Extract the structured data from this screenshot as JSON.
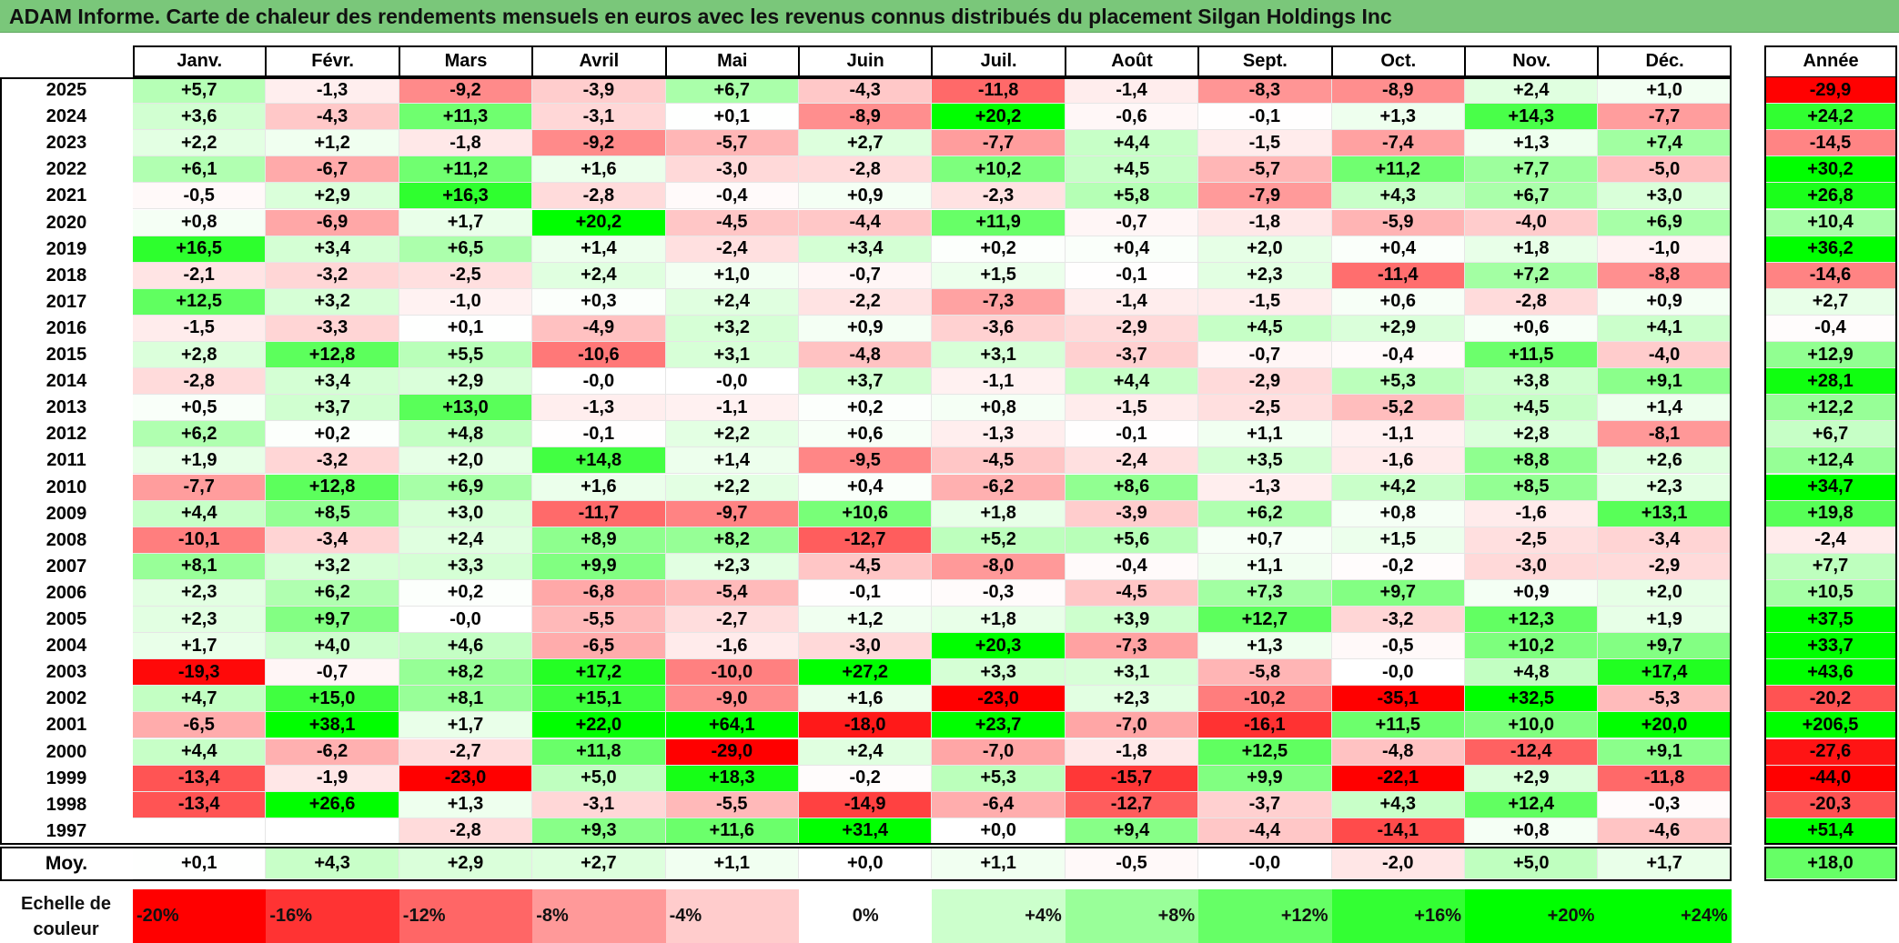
{
  "title": "ADAM Informe. Carte de chaleur des rendements mensuels en euros avec les revenus connus distribués du placement Silgan Holdings Inc",
  "colors": {
    "title_bar": "#7ac77a",
    "negative_strong": "#ff0000",
    "positive_strong": "#00ff00",
    "neutral": "#ffffff"
  },
  "chart_data": {
    "type": "heatmap",
    "title": "ADAM Informe. Carte de chaleur des rendements mensuels en euros avec les revenus connus distribués du placement Silgan Holdings Inc",
    "columns": [
      "Janv.",
      "Févr.",
      "Mars",
      "Avril",
      "Mai",
      "Juin",
      "Juil.",
      "Août",
      "Sept.",
      "Oct.",
      "Nov.",
      "Déc."
    ],
    "year_column": "Année",
    "rows": [
      {
        "year": "2025",
        "values": [
          "+5,7",
          "-1,3",
          "-9,2",
          "-3,9",
          "+6,7",
          "-4,3",
          "-11,8",
          "-1,4",
          "-8,3",
          "-8,9",
          "+2,4",
          "+1,0"
        ],
        "annual": "-29,9"
      },
      {
        "year": "2024",
        "values": [
          "+3,6",
          "-4,3",
          "+11,3",
          "-3,1",
          "+0,1",
          "-8,9",
          "+20,2",
          "-0,6",
          "-0,1",
          "+1,3",
          "+14,3",
          "-7,7"
        ],
        "annual": "+24,2"
      },
      {
        "year": "2023",
        "values": [
          "+2,2",
          "+1,2",
          "-1,8",
          "-9,2",
          "-5,7",
          "+2,7",
          "-7,7",
          "+4,4",
          "-1,5",
          "-7,4",
          "+1,3",
          "+7,4"
        ],
        "annual": "-14,5"
      },
      {
        "year": "2022",
        "values": [
          "+6,1",
          "-6,7",
          "+11,2",
          "+1,6",
          "-3,0",
          "-2,8",
          "+10,2",
          "+4,5",
          "-5,7",
          "+11,2",
          "+7,7",
          "-5,0"
        ],
        "annual": "+30,2"
      },
      {
        "year": "2021",
        "values": [
          "-0,5",
          "+2,9",
          "+16,3",
          "-2,8",
          "-0,4",
          "+0,9",
          "-2,3",
          "+5,8",
          "-7,9",
          "+4,3",
          "+6,7",
          "+3,0"
        ],
        "annual": "+26,8"
      },
      {
        "year": "2020",
        "values": [
          "+0,8",
          "-6,9",
          "+1,7",
          "+20,2",
          "-4,5",
          "-4,4",
          "+11,9",
          "-0,7",
          "-1,8",
          "-5,9",
          "-4,0",
          "+6,9"
        ],
        "annual": "+10,4"
      },
      {
        "year": "2019",
        "values": [
          "+16,5",
          "+3,4",
          "+6,5",
          "+1,4",
          "-2,4",
          "+3,4",
          "+0,2",
          "+0,4",
          "+2,0",
          "+0,4",
          "+1,8",
          "-1,0"
        ],
        "annual": "+36,2"
      },
      {
        "year": "2018",
        "values": [
          "-2,1",
          "-3,2",
          "-2,5",
          "+2,4",
          "+1,0",
          "-0,7",
          "+1,5",
          "-0,1",
          "+2,3",
          "-11,4",
          "+7,2",
          "-8,8"
        ],
        "annual": "-14,6"
      },
      {
        "year": "2017",
        "values": [
          "+12,5",
          "+3,2",
          "-1,0",
          "+0,3",
          "+2,4",
          "-2,2",
          "-7,3",
          "-1,4",
          "-1,5",
          "+0,6",
          "-2,8",
          "+0,9"
        ],
        "annual": "+2,7"
      },
      {
        "year": "2016",
        "values": [
          "-1,5",
          "-3,3",
          "+0,1",
          "-4,9",
          "+3,2",
          "+0,9",
          "-3,6",
          "-2,9",
          "+4,5",
          "+2,9",
          "+0,6",
          "+4,1"
        ],
        "annual": "-0,4"
      },
      {
        "year": "2015",
        "values": [
          "+2,8",
          "+12,8",
          "+5,5",
          "-10,6",
          "+3,1",
          "-4,8",
          "+3,1",
          "-3,7",
          "-0,7",
          "-0,4",
          "+11,5",
          "-4,0"
        ],
        "annual": "+12,9"
      },
      {
        "year": "2014",
        "values": [
          "-2,8",
          "+3,4",
          "+2,9",
          "-0,0",
          "-0,0",
          "+3,7",
          "-1,1",
          "+4,4",
          "-2,9",
          "+5,3",
          "+3,8",
          "+9,1"
        ],
        "annual": "+28,1"
      },
      {
        "year": "2013",
        "values": [
          "+0,5",
          "+3,7",
          "+13,0",
          "-1,3",
          "-1,1",
          "+0,2",
          "+0,8",
          "-1,5",
          "-2,5",
          "-5,2",
          "+4,5",
          "+1,4"
        ],
        "annual": "+12,2"
      },
      {
        "year": "2012",
        "values": [
          "+6,2",
          "+0,2",
          "+4,8",
          "-0,1",
          "+2,2",
          "+0,6",
          "-1,3",
          "-0,1",
          "+1,1",
          "-1,1",
          "+2,8",
          "-8,1"
        ],
        "annual": "+6,7"
      },
      {
        "year": "2011",
        "values": [
          "+1,9",
          "-3,2",
          "+2,0",
          "+14,8",
          "+1,4",
          "-9,5",
          "-4,5",
          "-2,4",
          "+3,5",
          "-1,6",
          "+8,8",
          "+2,6"
        ],
        "annual": "+12,4"
      },
      {
        "year": "2010",
        "values": [
          "-7,7",
          "+12,8",
          "+6,9",
          "+1,6",
          "+2,2",
          "+0,4",
          "-6,2",
          "+8,6",
          "-1,3",
          "+4,2",
          "+8,5",
          "+2,3"
        ],
        "annual": "+34,7"
      },
      {
        "year": "2009",
        "values": [
          "+4,4",
          "+8,5",
          "+3,0",
          "-11,7",
          "-9,7",
          "+10,6",
          "+1,8",
          "-3,9",
          "+6,2",
          "+0,8",
          "-1,6",
          "+13,1"
        ],
        "annual": "+19,8"
      },
      {
        "year": "2008",
        "values": [
          "-10,1",
          "-3,4",
          "+2,4",
          "+8,9",
          "+8,2",
          "-12,7",
          "+5,2",
          "+5,6",
          "+0,7",
          "+1,5",
          "-2,5",
          "-3,4"
        ],
        "annual": "-2,4"
      },
      {
        "year": "2007",
        "values": [
          "+8,1",
          "+3,2",
          "+3,3",
          "+9,9",
          "+2,3",
          "-4,5",
          "-8,0",
          "-0,4",
          "+1,1",
          "-0,2",
          "-3,0",
          "-2,9"
        ],
        "annual": "+7,7"
      },
      {
        "year": "2006",
        "values": [
          "+2,3",
          "+6,2",
          "+0,2",
          "-6,8",
          "-5,4",
          "-0,1",
          "-0,3",
          "-4,5",
          "+7,3",
          "+9,7",
          "+0,9",
          "+2,0"
        ],
        "annual": "+10,5"
      },
      {
        "year": "2005",
        "values": [
          "+2,3",
          "+9,7",
          "-0,0",
          "-5,5",
          "-2,7",
          "+1,2",
          "+1,8",
          "+3,9",
          "+12,7",
          "-3,2",
          "+12,3",
          "+1,9"
        ],
        "annual": "+37,5"
      },
      {
        "year": "2004",
        "values": [
          "+1,7",
          "+4,0",
          "+4,6",
          "-6,5",
          "-1,6",
          "-3,0",
          "+20,3",
          "-7,3",
          "+1,3",
          "-0,5",
          "+10,2",
          "+9,7"
        ],
        "annual": "+33,7"
      },
      {
        "year": "2003",
        "values": [
          "-19,3",
          "-0,7",
          "+8,2",
          "+17,2",
          "-10,0",
          "+27,2",
          "+3,3",
          "+3,1",
          "-5,8",
          "-0,0",
          "+4,8",
          "+17,4"
        ],
        "annual": "+43,6"
      },
      {
        "year": "2002",
        "values": [
          "+4,7",
          "+15,0",
          "+8,1",
          "+15,1",
          "-9,0",
          "+1,6",
          "-23,0",
          "+2,3",
          "-10,2",
          "-35,1",
          "+32,5",
          "-5,3"
        ],
        "annual": "-20,2"
      },
      {
        "year": "2001",
        "values": [
          "-6,5",
          "+38,1",
          "+1,7",
          "+22,0",
          "+64,1",
          "-18,0",
          "+23,7",
          "-7,0",
          "-16,1",
          "+11,5",
          "+10,0",
          "+20,0"
        ],
        "annual": "+206,5"
      },
      {
        "year": "2000",
        "values": [
          "+4,4",
          "-6,2",
          "-2,7",
          "+11,8",
          "-29,0",
          "+2,4",
          "-7,0",
          "-1,8",
          "+12,5",
          "-4,8",
          "-12,4",
          "+9,1"
        ],
        "annual": "-27,6"
      },
      {
        "year": "1999",
        "values": [
          "-13,4",
          "-1,9",
          "-23,0",
          "+5,0",
          "+18,3",
          "-0,2",
          "+5,3",
          "-15,7",
          "+9,9",
          "-22,1",
          "+2,9",
          "-11,8"
        ],
        "annual": "-44,0"
      },
      {
        "year": "1998",
        "values": [
          "-13,4",
          "+26,6",
          "+1,3",
          "-3,1",
          "-5,5",
          "-14,9",
          "-6,4",
          "-12,7",
          "-3,7",
          "+4,3",
          "+12,4",
          "-0,3"
        ],
        "annual": "-20,3"
      },
      {
        "year": "1997",
        "values": [
          "",
          "",
          "-2,8",
          "+9,3",
          "+11,6",
          "+31,4",
          "+0,0",
          "+9,4",
          "-4,4",
          "-14,1",
          "+0,8",
          "-4,6"
        ],
        "annual": "+51,4"
      }
    ],
    "average": {
      "label": "Moy.",
      "values": [
        "+0,1",
        "+4,3",
        "+2,9",
        "+2,7",
        "+1,1",
        "+0,0",
        "+1,1",
        "-0,5",
        "-0,0",
        "-2,0",
        "+5,0",
        "+1,7"
      ],
      "annual": "+18,0"
    },
    "scale": {
      "label": "Echelle de couleur",
      "stops": [
        "-20%",
        "-16%",
        "-12%",
        "-8%",
        "-4%",
        "0%",
        "+4%",
        "+8%",
        "+12%",
        "+16%",
        "+20%",
        "+24%"
      ],
      "stop_values": [
        -20,
        -16,
        -12,
        -8,
        -4,
        0,
        4,
        8,
        12,
        16,
        20,
        24
      ]
    }
  }
}
